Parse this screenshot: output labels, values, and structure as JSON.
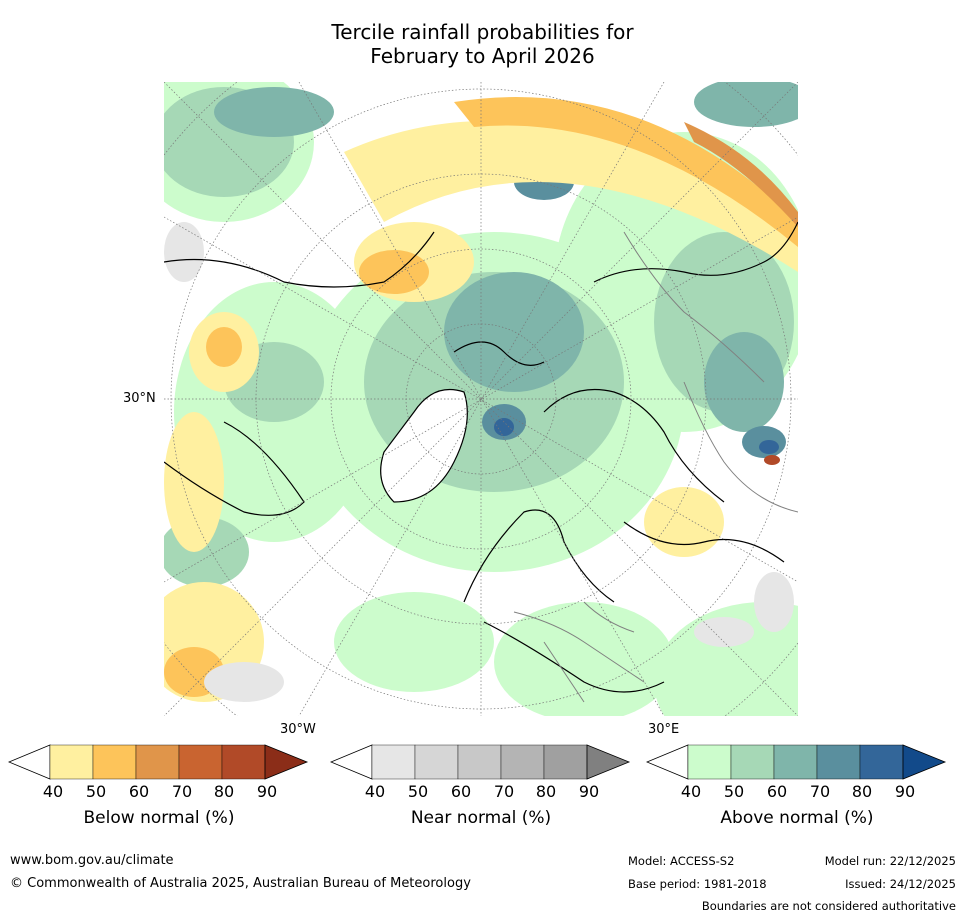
{
  "title": {
    "line1": "Tercile rainfall probabilities for",
    "line2": "February to April 2026"
  },
  "map": {
    "lat_label": "30°N",
    "lon_labels": {
      "west": "30°W",
      "east": "30°E"
    },
    "description_regions": "Northern hemisphere polar projection map showing probabilistic rainfall tercile forecast"
  },
  "legend": {
    "ticks": [
      "40",
      "50",
      "60",
      "70",
      "80",
      "90"
    ],
    "below": {
      "title": "Below normal (%)",
      "colors": [
        "#ffffff",
        "#fff0a0",
        "#fdc45a",
        "#e0954a",
        "#c96430",
        "#b14a28",
        "#8b2d18"
      ]
    },
    "near": {
      "title": "Near normal (%)",
      "colors": [
        "#ffffff",
        "#e6e6e6",
        "#d6d6d6",
        "#c8c8c8",
        "#b4b4b4",
        "#a0a0a0",
        "#808080"
      ]
    },
    "above": {
      "title": "Above normal (%)",
      "colors": [
        "#ffffff",
        "#ccfccc",
        "#a6d8b6",
        "#7fb5aa",
        "#5a8f9e",
        "#336699",
        "#124a8a"
      ]
    }
  },
  "footer": {
    "url": "www.bom.gov.au/climate",
    "copyright": "© Commonwealth of Australia 2025, Australian Bureau of Meteorology",
    "model": "Model: ACCESS-S2",
    "base_period": "Base period: 1981-2018",
    "model_run": "Model run: 22/12/2025",
    "issued": "Issued: 24/12/2025",
    "disclaimer": "Boundaries are not considered authoritative"
  }
}
